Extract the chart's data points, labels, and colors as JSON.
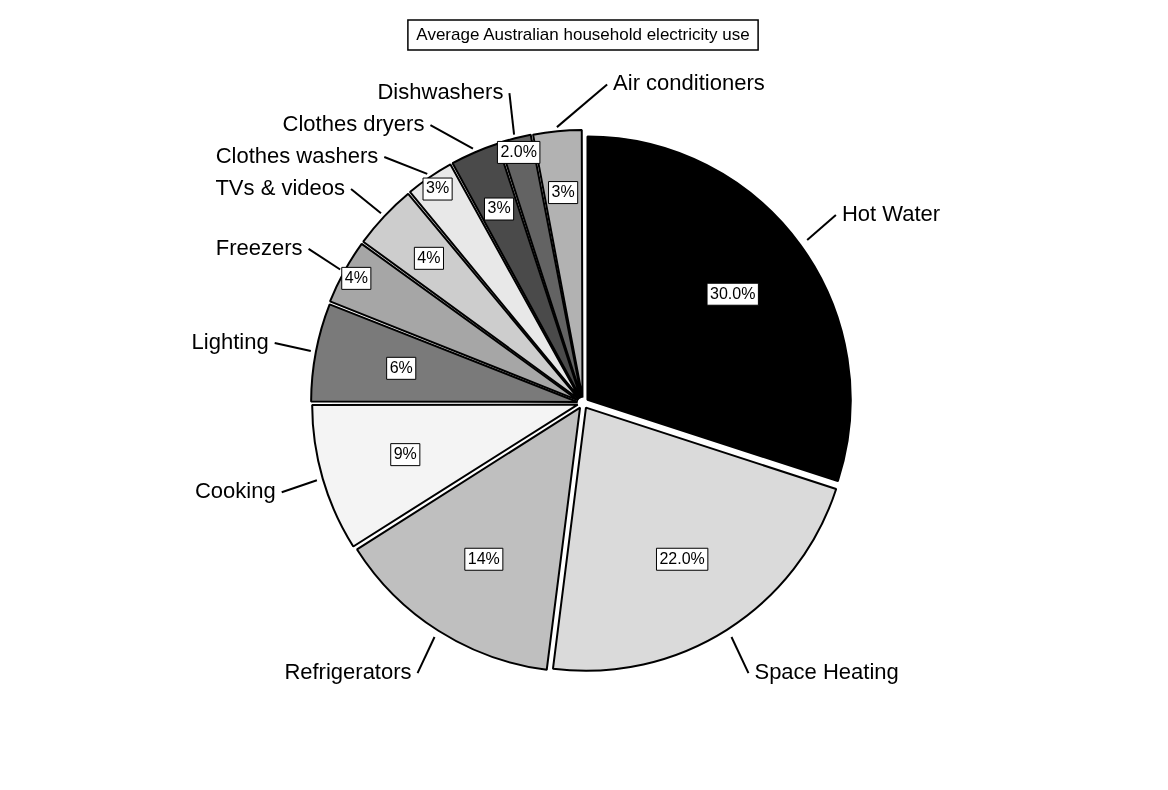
{
  "chart_data": {
    "type": "pie",
    "title": "Average Australian household electricity use",
    "categories": [
      "Hot Water",
      "Space Heating",
      "Refrigerators",
      "Cooking",
      "Lighting",
      "Freezers",
      "TVs & videos",
      "Clothes washers",
      "Clothes dryers",
      "Dishwashers",
      "Air conditioners"
    ],
    "values": [
      30,
      22,
      14,
      9,
      6,
      4,
      4,
      3,
      3,
      2,
      3
    ],
    "colors": [
      "#000000",
      "#dadada",
      "#bfbfbf",
      "#f4f4f4",
      "#7a7a7a",
      "#a6a6a6",
      "#cdcdcd",
      "#e8e8e8",
      "#4a4a4a",
      "#636363",
      "#b2b2b2"
    ],
    "value_labels": [
      "30.0%",
      "22.0%",
      "14%",
      "9%",
      "6%",
      "4%",
      "4%",
      "3%",
      "3%",
      "2.0%",
      "3%"
    ]
  }
}
